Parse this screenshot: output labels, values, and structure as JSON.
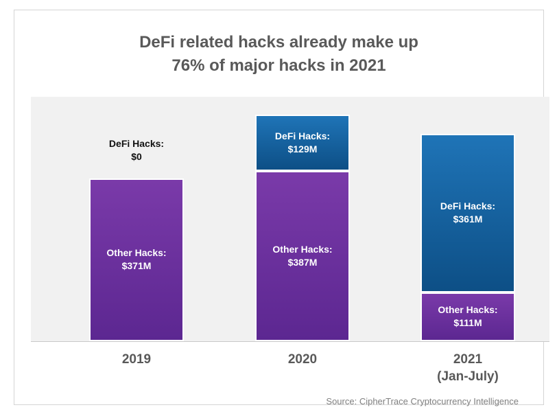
{
  "chart_data": {
    "type": "bar",
    "stacked": true,
    "title": "DeFi related hacks already make up 76% of major hacks in 2021",
    "title_lines": [
      "DeFi related hacks already make up",
      "76% of major hacks in 2021"
    ],
    "categories": [
      "2019",
      "2020",
      "2021"
    ],
    "category_sublabels": [
      "",
      "",
      "(Jan-July)"
    ],
    "unit": "$M",
    "series": [
      {
        "name": "Other Hacks",
        "label": "Other Hacks:",
        "values": [
          371,
          387,
          111
        ],
        "value_labels": [
          "$371M",
          "$387M",
          "$111M"
        ],
        "color": "#6a2f9f"
      },
      {
        "name": "DeFi Hacks",
        "label": "DeFi Hacks:",
        "values": [
          0,
          129,
          361
        ],
        "value_labels": [
          "$0",
          "$129M",
          "$361M"
        ],
        "color": "#1565a8"
      }
    ],
    "source": "Source: CipherTrace Cryptocurrency Intelligence"
  }
}
